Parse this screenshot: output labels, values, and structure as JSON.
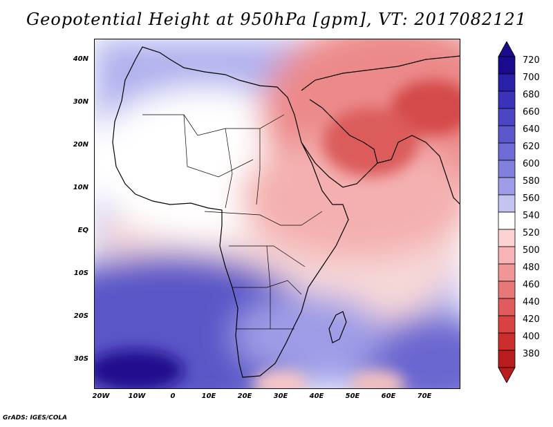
{
  "title": "Geopotential Height at 950hPa [gpm], VT: 2017082121",
  "credit": "GrADS: IGES/COLA",
  "map": {
    "lat_labels": [
      "40N",
      "30N",
      "20N",
      "10N",
      "EQ",
      "10S",
      "20S",
      "30S"
    ],
    "lon_labels": [
      "20W",
      "10W",
      "0",
      "10E",
      "20E",
      "30E",
      "40E",
      "50E",
      "60E",
      "70E"
    ]
  },
  "colorbar": {
    "levels": [
      "720",
      "700",
      "680",
      "660",
      "640",
      "620",
      "600",
      "580",
      "560",
      "540",
      "520",
      "500",
      "480",
      "460",
      "440",
      "420",
      "400",
      "380"
    ],
    "colors": [
      "#1a0a8c",
      "#2a20a8",
      "#3a32b8",
      "#4a46c4",
      "#5c58cc",
      "#6e6ad6",
      "#8280de",
      "#9e9ce8",
      "#c4c4f2",
      "#ffffff",
      "#fcd2d2",
      "#f8b4b4",
      "#f09696",
      "#e87878",
      "#e05c5c",
      "#d84242",
      "#cc2e2e",
      "#b81c1c"
    ]
  }
}
